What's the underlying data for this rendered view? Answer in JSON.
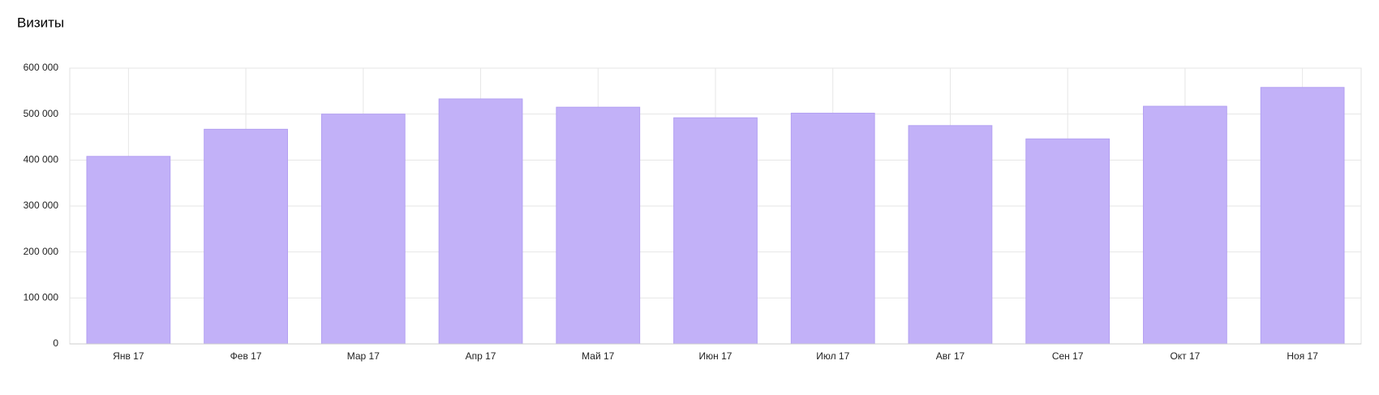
{
  "chart_data": {
    "type": "bar",
    "title": "Визиты",
    "categories": [
      "Янв 17",
      "Фев 17",
      "Мар 17",
      "Апр 17",
      "Май 17",
      "Июн 17",
      "Июл 17",
      "Авг 17",
      "Сен 17",
      "Окт 17",
      "Ноя 17"
    ],
    "values": [
      408000,
      467000,
      500000,
      533000,
      515000,
      492000,
      502000,
      475000,
      446000,
      517000,
      558000
    ],
    "color": "#c2b1f8",
    "ylim": [
      0,
      600000
    ],
    "yticks": [
      0,
      {
        "value": 100000,
        "label": "100 000"
      },
      {
        "value": 200000,
        "label": "200 000"
      },
      {
        "value": 300000,
        "label": "300 000"
      },
      {
        "value": 400000,
        "label": "400 000"
      },
      {
        "value": 500000,
        "label": "500 000"
      },
      {
        "value": 600000,
        "label": "600 000"
      }
    ],
    "grid": true
  }
}
